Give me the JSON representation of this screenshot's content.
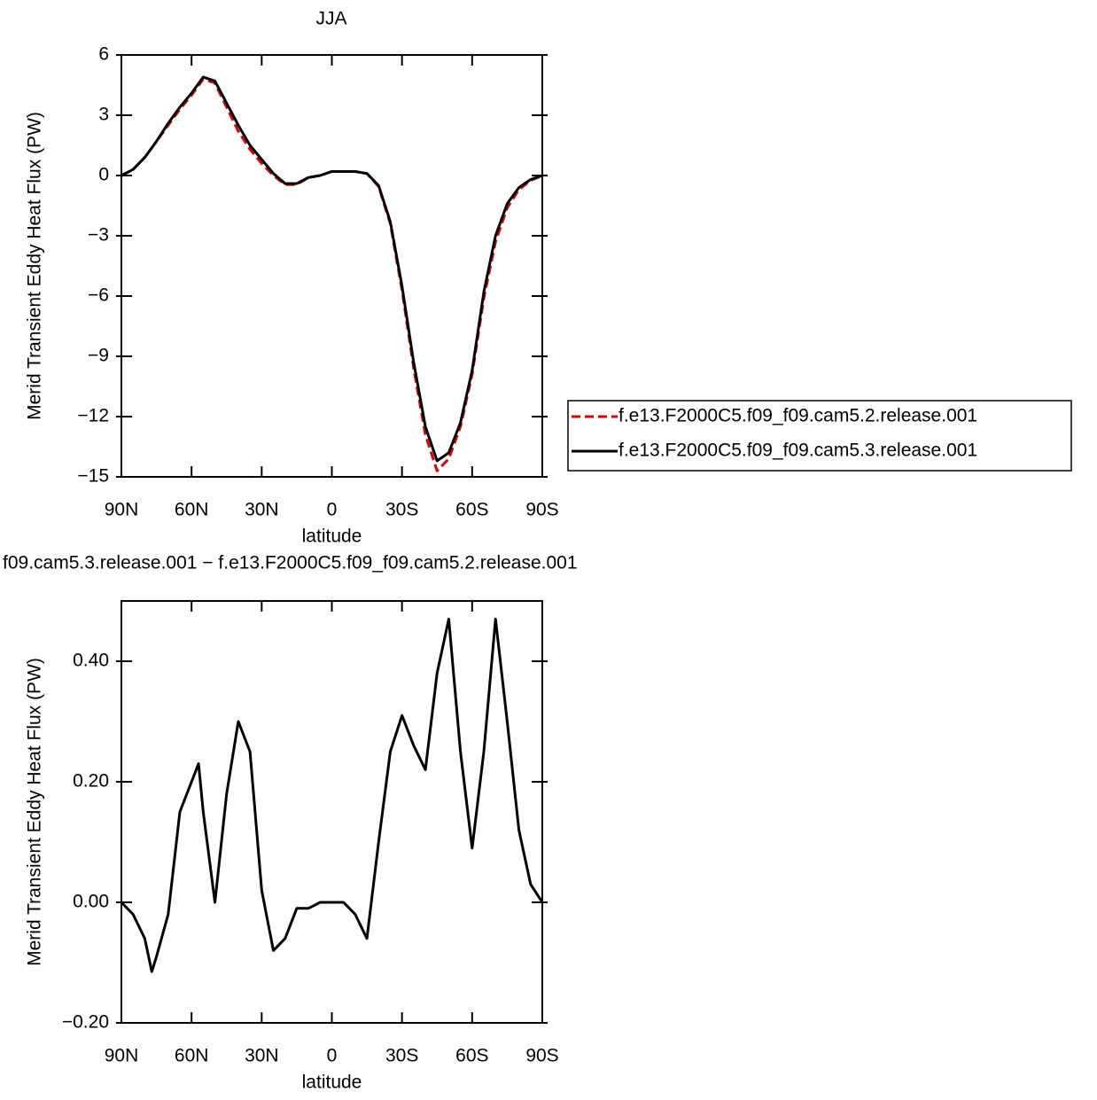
{
  "chart_data": [
    {
      "type": "line",
      "title": "JJA",
      "xlabel": "latitude",
      "ylabel": "Merid Transient Eddy Heat Flux (PW)",
      "x": [
        90,
        85,
        80,
        75,
        70,
        65,
        60,
        55,
        50,
        45,
        40,
        35,
        30,
        25,
        20,
        15,
        10,
        5,
        0,
        -5,
        -10,
        -15,
        -20,
        -25,
        -30,
        -35,
        -40,
        -45,
        -50,
        -55,
        -60,
        -65,
        -70,
        -75,
        -80,
        -85,
        -90
      ],
      "series": [
        {
          "name": "f.e13.F2000C5.f09_f09.cam5.2.release.001",
          "color": "#e00000",
          "line_style": "dashed",
          "values": [
            0,
            0.3,
            0.9,
            1.7,
            2.5,
            3.3,
            4.0,
            4.8,
            4.6,
            3.4,
            2.2,
            1.3,
            0.6,
            0.0,
            -0.45,
            -0.45,
            -0.1,
            0.0,
            0.2,
            0.2,
            0.2,
            0.1,
            -0.55,
            -2.4,
            -5.7,
            -9.6,
            -12.9,
            -14.7,
            -14.1,
            -12.5,
            -9.9,
            -6.1,
            -3.3,
            -1.6,
            -0.7,
            -0.25,
            0
          ]
        },
        {
          "name": "f.e13.F2000C5.f09_f09.cam5.3.release.001",
          "color": "#000000",
          "line_style": "solid",
          "values": [
            0,
            0.3,
            0.9,
            1.7,
            2.6,
            3.4,
            4.1,
            4.9,
            4.7,
            3.6,
            2.5,
            1.5,
            0.8,
            0.1,
            -0.4,
            -0.4,
            -0.1,
            0.0,
            0.2,
            0.2,
            0.2,
            0.1,
            -0.5,
            -2.3,
            -5.5,
            -9.3,
            -12.5,
            -14.2,
            -13.8,
            -12.3,
            -9.7,
            -5.8,
            -3.0,
            -1.4,
            -0.6,
            -0.2,
            0
          ]
        }
      ],
      "xlim": [
        90,
        -90
      ],
      "xticks": [
        {
          "value": 90,
          "label": "90N"
        },
        {
          "value": 60,
          "label": "60N"
        },
        {
          "value": 30,
          "label": "30N"
        },
        0,
        {
          "value": -30,
          "label": "30S"
        },
        {
          "value": -60,
          "label": "60S"
        },
        {
          "value": -90,
          "label": "90S"
        }
      ],
      "ylim": [
        -15,
        6
      ],
      "yticks": [
        6,
        3,
        0,
        {
          "value": -3,
          "label": "−3"
        },
        {
          "value": -6,
          "label": "−6"
        },
        {
          "value": -9,
          "label": "−9"
        },
        {
          "value": -12,
          "label": "−12"
        },
        {
          "value": -15,
          "label": "−15"
        }
      ],
      "legend_position": "right"
    },
    {
      "type": "line",
      "title": "f09.cam5.3.release.001 − f.e13.F2000C5.f09_f09.cam5.2.release.001",
      "xlabel": "latitude",
      "ylabel": "Merid Transient Eddy Heat Flux (PW)",
      "x": [
        90,
        85,
        80,
        77,
        75,
        70,
        65,
        60,
        57,
        55,
        50,
        45,
        40,
        35,
        30,
        25,
        20,
        15,
        10,
        5,
        0,
        -5,
        -10,
        -15,
        -20,
        -25,
        -30,
        -35,
        -40,
        -45,
        -50,
        -55,
        -60,
        -65,
        -70,
        -75,
        -80,
        -85,
        -90
      ],
      "series": [
        {
          "color": "#000000",
          "line_style": "solid",
          "values": [
            0,
            -0.02,
            -0.06,
            -0.115,
            -0.09,
            -0.02,
            0.15,
            0.2,
            0.23,
            0.15,
            0.0,
            0.18,
            0.3,
            0.25,
            0.02,
            -0.08,
            -0.06,
            -0.01,
            -0.01,
            0.0,
            0.0,
            0.0,
            -0.02,
            -0.06,
            0.1,
            0.25,
            0.31,
            0.26,
            0.22,
            0.38,
            0.47,
            0.25,
            0.09,
            0.25,
            0.47,
            0.3,
            0.12,
            0.03,
            0
          ]
        }
      ],
      "xlim": [
        90,
        -90
      ],
      "xticks": [
        {
          "value": 90,
          "label": "90N"
        },
        {
          "value": 60,
          "label": "60N"
        },
        {
          "value": 30,
          "label": "30N"
        },
        0,
        {
          "value": -30,
          "label": "30S"
        },
        {
          "value": -60,
          "label": "60S"
        },
        {
          "value": -90,
          "label": "90S"
        }
      ],
      "ylim": [
        -0.2,
        0.5
      ],
      "yticks": [
        {
          "value": 0.4,
          "label": "0.40"
        },
        {
          "value": 0.2,
          "label": "0.20"
        },
        {
          "value": 0,
          "label": "0.00"
        },
        {
          "value": -0.2,
          "label": "−0.20"
        }
      ]
    }
  ]
}
